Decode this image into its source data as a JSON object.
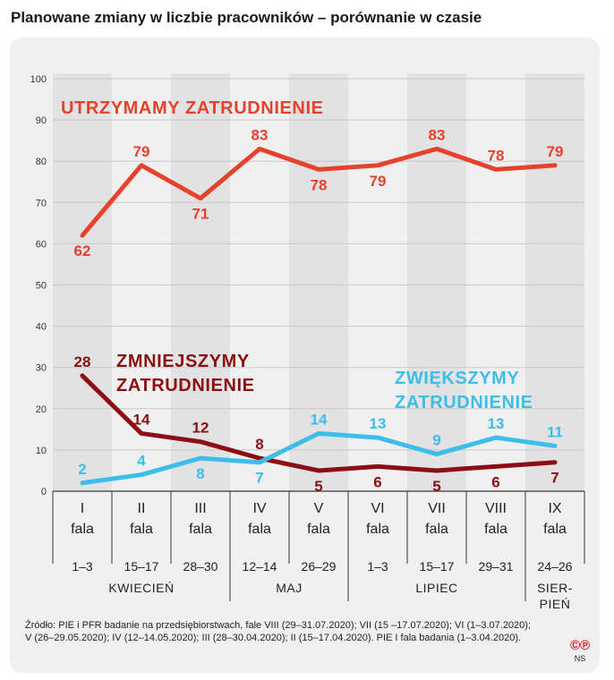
{
  "title": "Planowane zmiany w liczbie pracowników – porównanie w czasie",
  "source": "Źródło: PIE i PFR badanie na przedsiębiorstwach, fale VIII (29–31.07.2020); VII (15 –17.07.2020); VI (1–3.07.2020); V (26–29.05.2020); IV (12–14.05.2020); III (28–30.04.2020); II (15–17.04.2020). PIE I fala badania (1–3.04.2020).",
  "logo": {
    "marks": "©℗",
    "initials": "NS"
  },
  "colors": {
    "keep": "#e5412d",
    "decrease": "#8b0e12",
    "increase": "#3cbdea",
    "grid": "#c8c8c8"
  },
  "chart_data": {
    "type": "line",
    "title": "Planowane zmiany w liczbie pracowników – porównanie w czasie",
    "ylim": [
      0,
      100
    ],
    "yticks": [
      0,
      10,
      20,
      30,
      40,
      50,
      60,
      70,
      80,
      90,
      100
    ],
    "grid": true,
    "categories": [
      {
        "wave": "I",
        "label": "fala",
        "dates": "1–3"
      },
      {
        "wave": "II",
        "label": "fala",
        "dates": "15–17"
      },
      {
        "wave": "III",
        "label": "fala",
        "dates": "28–30"
      },
      {
        "wave": "IV",
        "label": "fala",
        "dates": "12–14"
      },
      {
        "wave": "V",
        "label": "fala",
        "dates": "26–29"
      },
      {
        "wave": "VI",
        "label": "fala",
        "dates": "1–3"
      },
      {
        "wave": "VII",
        "label": "fala",
        "dates": "15–17"
      },
      {
        "wave": "VIII",
        "label": "fala",
        "dates": "29–31"
      },
      {
        "wave": "IX",
        "label": "fala",
        "dates": "24–26"
      }
    ],
    "months": [
      {
        "name": "KWIECIEŃ",
        "from": 0,
        "to": 2
      },
      {
        "name": "MAJ",
        "from": 3,
        "to": 4
      },
      {
        "name": "LIPIEC",
        "from": 5,
        "to": 7
      },
      {
        "name": "SIER-",
        "name2": "PIEŃ",
        "from": 8,
        "to": 8
      }
    ],
    "series": [
      {
        "name": "UTRZYMAMY ZATRUDNIENIE",
        "key": "keep",
        "values": [
          62,
          79,
          71,
          83,
          78,
          79,
          83,
          78,
          79
        ],
        "labelPos": [
          "below",
          "above",
          "below",
          "above",
          "below",
          "below",
          "above",
          "above",
          "above"
        ]
      },
      {
        "name": "ZMNIEJSZYMY",
        "name2": "ZATRUDNIENIE",
        "key": "decrease",
        "values": [
          28,
          14,
          12,
          8,
          5,
          6,
          5,
          6,
          7
        ],
        "labelPos": [
          "above",
          "above",
          "above",
          "above",
          "below",
          "below",
          "below",
          "below",
          "below"
        ]
      },
      {
        "name": "ZWIĘKSZYMY",
        "name2": "ZATRUDNIENIE",
        "key": "increase",
        "values": [
          2,
          4,
          8,
          7,
          14,
          13,
          9,
          13,
          11
        ],
        "labelPos": [
          "above",
          "above",
          "below",
          "below",
          "above",
          "above",
          "above",
          "above",
          "above"
        ]
      }
    ]
  }
}
